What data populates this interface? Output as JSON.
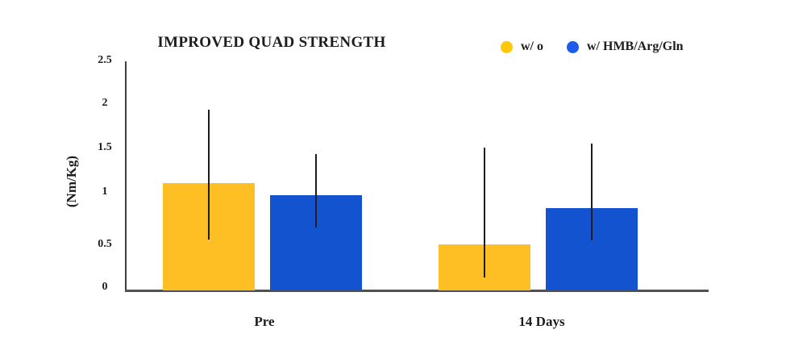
{
  "background_color": "#FFFFFF",
  "text_color": "#1D1D1B",
  "axis_color": "#4A4A4C",
  "legend": {
    "items": [
      {
        "label": "w/ o",
        "color": "#FFC60A"
      },
      {
        "label": "w/ HMB/Arg/Gln",
        "color": "#1E5BE8"
      }
    ]
  },
  "chart_data": {
    "type": "bar",
    "title": "IMPROVED QUAD STRENGTH",
    "ylabel": "(Nm/Kg)",
    "xlabel": "",
    "categories": [
      "Pre",
      "14 Days"
    ],
    "series": [
      {
        "name": "w/ o",
        "color": "#FDBF23",
        "values": [
          1.16,
          0.5
        ],
        "error_high": [
          1.96,
          1.55
        ],
        "error_low": [
          0.55,
          0.14
        ]
      },
      {
        "name": "w/ HMB/Arg/Gln",
        "color": "#1453CF",
        "values": [
          1.03,
          0.89
        ],
        "error_high": [
          1.48,
          1.59
        ],
        "error_low": [
          0.68,
          0.54
        ]
      }
    ],
    "error_bar_color": "#1C1C1C",
    "yticks": [
      0,
      0.5,
      1,
      1.5,
      2,
      2.5
    ],
    "ytick_labels": [
      "0",
      "0.5",
      "1",
      "1.5",
      "2",
      "2.5"
    ],
    "ylim": [
      0,
      2.5
    ],
    "grid": false,
    "legend_position": "top-right"
  }
}
